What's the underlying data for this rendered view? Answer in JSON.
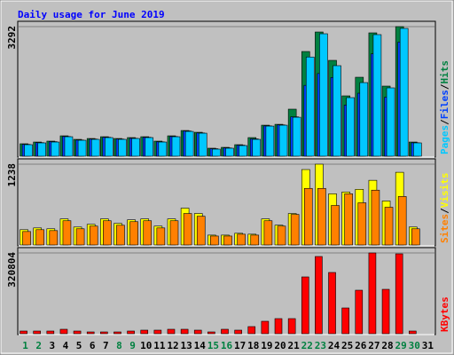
{
  "title": "Daily usage for June 2019",
  "legend_separator": "/",
  "weekend_color": "#008040",
  "weekends": [
    0,
    1,
    7,
    8,
    14,
    15,
    21,
    22,
    28,
    29
  ],
  "chart_data": [
    {
      "type": "bar",
      "categories": [
        "1",
        "2",
        "3",
        "4",
        "5",
        "6",
        "7",
        "8",
        "9",
        "10",
        "11",
        "12",
        "13",
        "14",
        "15",
        "16",
        "17",
        "18",
        "19",
        "20",
        "21",
        "22",
        "23",
        "24",
        "25",
        "26",
        "27",
        "28",
        "29",
        "30",
        "31"
      ],
      "ylim": [
        0,
        3292
      ],
      "yticks": [
        3292
      ],
      "series": [
        {
          "name": "Hits",
          "color": "#008040",
          "values": [
            316,
            360,
            383,
            518,
            428,
            450,
            495,
            450,
            473,
            495,
            383,
            518,
            653,
            608,
            203,
            225,
            293,
            473,
            788,
            810,
            1195,
            2660,
            3156,
            2435,
            1533,
            2006,
            3134,
            1781,
            3292,
            360,
            0
          ]
        },
        {
          "name": "Files",
          "color": "#0040ff",
          "values": [
            300,
            345,
            370,
            500,
            410,
            435,
            480,
            435,
            455,
            480,
            365,
            500,
            640,
            590,
            190,
            210,
            280,
            440,
            770,
            795,
            1000,
            1800,
            2100,
            2000,
            1300,
            1600,
            2600,
            1500,
            2900,
            340,
            0
          ]
        },
        {
          "name": "Pages",
          "color": "#00c8ff",
          "values": [
            293,
            338,
            360,
            495,
            405,
            428,
            473,
            428,
            450,
            473,
            360,
            495,
            630,
            585,
            180,
            203,
            270,
            428,
            765,
            788,
            990,
            2520,
            3111,
            2300,
            1488,
            1870,
            3089,
            1736,
            3247,
            338,
            0
          ]
        }
      ]
    },
    {
      "type": "bar",
      "categories": [
        "1",
        "2",
        "3",
        "4",
        "5",
        "6",
        "7",
        "8",
        "9",
        "10",
        "11",
        "12",
        "13",
        "14",
        "15",
        "16",
        "17",
        "18",
        "19",
        "20",
        "21",
        "22",
        "23",
        "24",
        "25",
        "26",
        "27",
        "28",
        "29",
        "30",
        "31"
      ],
      "ylim": [
        0,
        1238
      ],
      "yticks": [
        1238
      ],
      "series": [
        {
          "name": "Visits",
          "color": "#ffff00",
          "values": [
            234,
            261,
            248,
            399,
            275,
            316,
            399,
            330,
            385,
            399,
            289,
            399,
            564,
            482,
            151,
            151,
            179,
            165,
            399,
            303,
            482,
            1156,
            1238,
            784,
            812,
            853,
            991,
            674,
            1114,
            275,
            0
          ]
        },
        {
          "name": "Sites",
          "color": "#ff8000",
          "values": [
            206,
            234,
            220,
            371,
            248,
            289,
            371,
            302,
            357,
            371,
            261,
            371,
            482,
            440,
            137,
            137,
            165,
            151,
            371,
            289,
            468,
            867,
            867,
            605,
            784,
            646,
            840,
            578,
            743,
            248,
            0
          ]
        }
      ]
    },
    {
      "type": "bar",
      "categories": [
        "1",
        "2",
        "3",
        "4",
        "5",
        "6",
        "7",
        "8",
        "9",
        "10",
        "11",
        "12",
        "13",
        "14",
        "15",
        "16",
        "17",
        "18",
        "19",
        "20",
        "21",
        "22",
        "23",
        "24",
        "25",
        "26",
        "27",
        "28",
        "29",
        "30",
        "31"
      ],
      "ylim": [
        0,
        320804
      ],
      "yticks": [
        320804
      ],
      "series": [
        {
          "name": "KBytes",
          "color": "#ff0000",
          "values": [
            10575,
            10575,
            10575,
            17625,
            10575,
            7050,
            7050,
            7050,
            10575,
            14100,
            14100,
            17625,
            17625,
            14100,
            7050,
            17625,
            14100,
            28200,
            49350,
            59925,
            59925,
            225600,
            306675,
            243225,
            102225,
            172725,
            320804,
            176250,
            317250,
            10575,
            0
          ]
        }
      ]
    }
  ]
}
